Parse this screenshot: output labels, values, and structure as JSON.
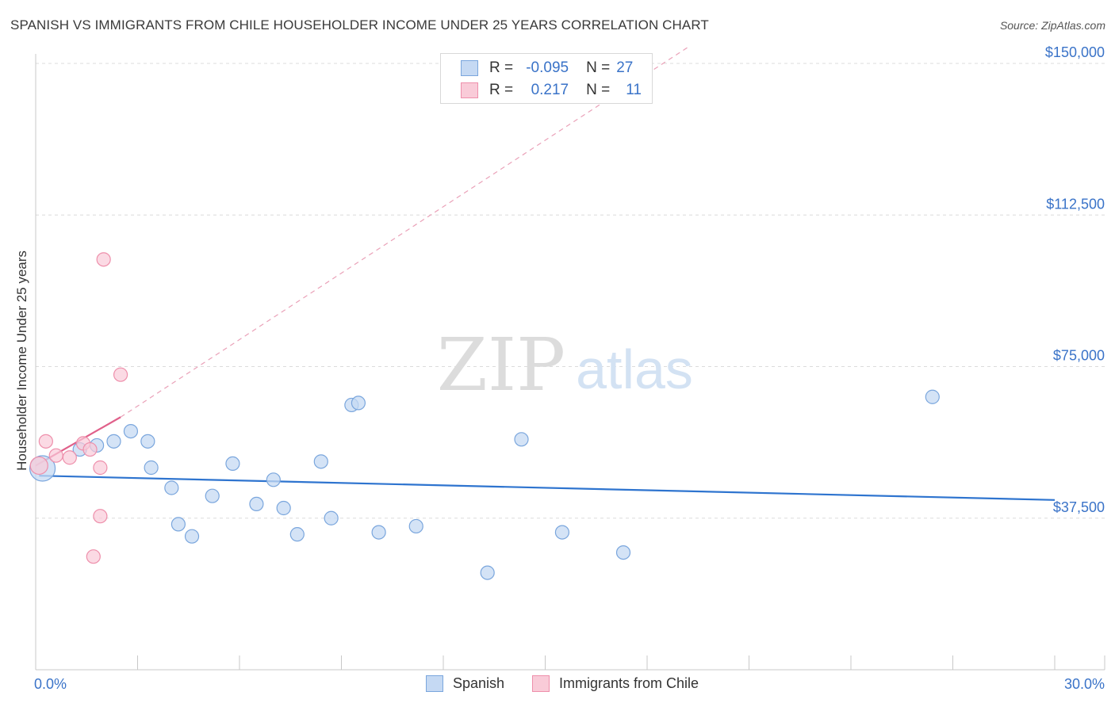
{
  "title": "SPANISH VS IMMIGRANTS FROM CHILE HOUSEHOLDER INCOME UNDER 25 YEARS CORRELATION CHART",
  "source": "Source: ZipAtlas.com",
  "watermark": {
    "zip": "ZIP",
    "atlas": "atlas"
  },
  "legend": {
    "rows": [
      {
        "r_label": "R =",
        "r_value": "-0.095",
        "n_label": "N =",
        "n_value": "27"
      },
      {
        "r_label": "R =",
        "r_value": "0.217",
        "n_label": "N =",
        "n_value": "11"
      }
    ]
  },
  "bottom_legend": {
    "spanish": "Spanish",
    "chile": "Immigrants from Chile"
  },
  "colors": {
    "spanish_fill": "#c5d9f3",
    "spanish_stroke": "#7aa6dd",
    "spanish_line": "#2e74cf",
    "chile_fill": "#f9cbd8",
    "chile_stroke": "#ee8fab",
    "chile_line": "#e0608a",
    "axis_label": "#3a73c8",
    "grid": "#dcdcdc"
  },
  "chart_data": {
    "type": "scatter",
    "title": "SPANISH VS IMMIGRANTS FROM CHILE HOUSEHOLDER INCOME UNDER 25 YEARS CORRELATION CHART",
    "xlabel": "",
    "ylabel": "Householder Income Under 25 years",
    "xlim": [
      0,
      30
    ],
    "ylim": [
      0,
      150000
    ],
    "x_tick_labels": [
      "0.0%",
      "30.0%"
    ],
    "y_ticks": [
      37500,
      75000,
      112500,
      150000
    ],
    "y_tick_labels": [
      "$37,500",
      "$75,000",
      "$112,500",
      "$150,000"
    ],
    "series": [
      {
        "name": "Spanish",
        "r": -0.095,
        "n": 27,
        "points": [
          {
            "x": 0.2,
            "y": 49800,
            "big": true
          },
          {
            "x": 1.3,
            "y": 54500
          },
          {
            "x": 1.8,
            "y": 55500
          },
          {
            "x": 2.3,
            "y": 56500
          },
          {
            "x": 2.8,
            "y": 59000
          },
          {
            "x": 3.3,
            "y": 56500
          },
          {
            "x": 3.4,
            "y": 50000
          },
          {
            "x": 4.0,
            "y": 45000
          },
          {
            "x": 4.2,
            "y": 36000
          },
          {
            "x": 4.6,
            "y": 33000
          },
          {
            "x": 5.2,
            "y": 43000
          },
          {
            "x": 5.8,
            "y": 51000
          },
          {
            "x": 6.5,
            "y": 41000
          },
          {
            "x": 7.0,
            "y": 47000
          },
          {
            "x": 7.3,
            "y": 40000
          },
          {
            "x": 7.7,
            "y": 33500
          },
          {
            "x": 8.4,
            "y": 51500
          },
          {
            "x": 8.7,
            "y": 37500
          },
          {
            "x": 9.3,
            "y": 65500
          },
          {
            "x": 9.5,
            "y": 66000
          },
          {
            "x": 10.1,
            "y": 34000
          },
          {
            "x": 11.2,
            "y": 35500
          },
          {
            "x": 13.3,
            "y": 24000
          },
          {
            "x": 14.3,
            "y": 57000
          },
          {
            "x": 15.5,
            "y": 34000
          },
          {
            "x": 17.3,
            "y": 29000
          },
          {
            "x": 26.4,
            "y": 67500
          }
        ],
        "trend": {
          "x0": 0.1,
          "y0": 48000,
          "x1": 30,
          "y1": 42000
        }
      },
      {
        "name": "Immigrants from Chile",
        "r": 0.217,
        "n": 11,
        "points": [
          {
            "x": 0.1,
            "y": 50500,
            "big": true
          },
          {
            "x": 0.3,
            "y": 56500
          },
          {
            "x": 0.6,
            "y": 53000
          },
          {
            "x": 1.0,
            "y": 52500
          },
          {
            "x": 1.4,
            "y": 56000
          },
          {
            "x": 1.6,
            "y": 54500
          },
          {
            "x": 1.9,
            "y": 50000
          },
          {
            "x": 1.9,
            "y": 38000
          },
          {
            "x": 1.7,
            "y": 28000
          },
          {
            "x": 2.0,
            "y": 101500
          },
          {
            "x": 2.5,
            "y": 73000
          }
        ],
        "trend": {
          "x0": 0.0,
          "y0": 50500,
          "x1": 2.5,
          "y1": 62500
        },
        "trend_extended": {
          "x0": 2.5,
          "y0": 62500,
          "x1": 19.2,
          "y1": 154000
        }
      }
    ]
  }
}
